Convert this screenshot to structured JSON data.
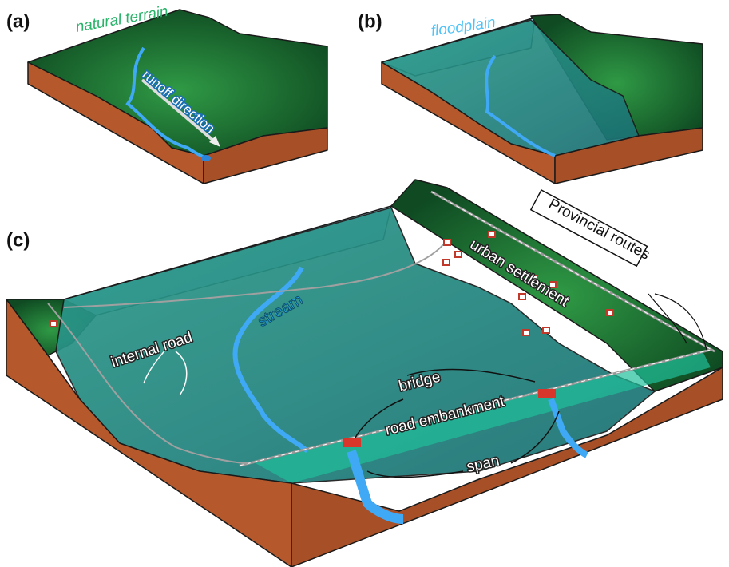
{
  "panels": [
    {
      "label": "(a)",
      "annotations": [
        "natural terrain",
        "runoff direction"
      ]
    },
    {
      "label": "(b)",
      "annotations": [
        "floodplain"
      ]
    },
    {
      "label": "(c)",
      "annotations": [
        "Provincial routes",
        "urban settlement",
        "stream",
        "internal road",
        "bridge",
        "road embankment",
        "span"
      ]
    }
  ]
}
